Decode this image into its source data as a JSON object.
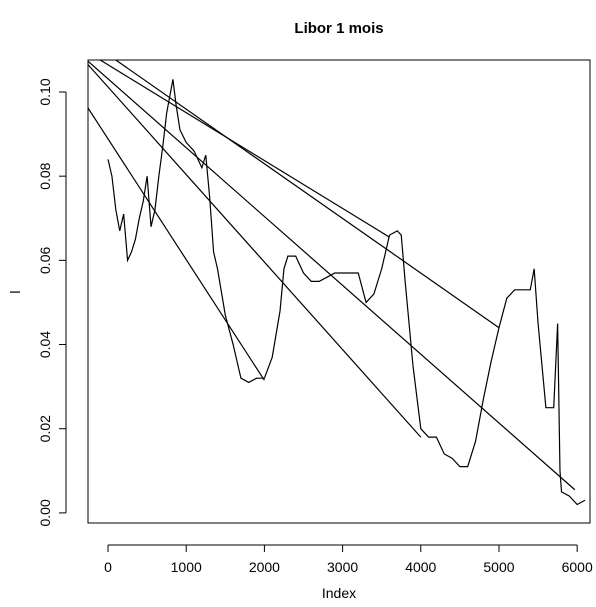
{
  "chart_data": {
    "type": "line",
    "title": "Libor 1 mois",
    "x_label": "Index",
    "y_label": "l",
    "xlim": [
      -256,
      6164
    ],
    "ylim": [
      -0.0024,
      0.1076
    ],
    "xticks": [
      0,
      1000,
      2000,
      3000,
      4000,
      5000,
      6000
    ],
    "yticks": [
      {
        "value": 0,
        "label": "0.00"
      },
      {
        "value": 0.02,
        "label": "0.02"
      },
      {
        "value": 0.04,
        "label": "0.04"
      },
      {
        "value": 0.06,
        "label": "0.06"
      },
      {
        "value": 0.08,
        "label": "0.08"
      },
      {
        "value": 0.1,
        "label": "0.10"
      }
    ],
    "series": [
      {
        "color": "#000000",
        "x": [
          0,
          50,
          100,
          150,
          200,
          250,
          300,
          350,
          400,
          450,
          500,
          550,
          600,
          650,
          700,
          750,
          800,
          830,
          870,
          920,
          1000,
          1100,
          1200,
          1250,
          1300,
          1350,
          1400,
          1500,
          1600,
          1700,
          1800,
          1900,
          2000,
          2100,
          2200,
          2250,
          2300,
          2400,
          2500,
          2600,
          2700,
          2800,
          2900,
          3000,
          3200,
          3300,
          3400,
          3500,
          3600,
          3700,
          3750,
          3800,
          3900,
          4000,
          4100,
          4200,
          4300,
          4400,
          4500,
          4600,
          4700,
          4800,
          4900,
          5000,
          5100,
          5200,
          5300,
          5400,
          5450,
          5500,
          5550,
          5600,
          5700,
          5750,
          5780,
          5800,
          5900,
          6000,
          6100
        ],
        "values": [
          0.084,
          0.08,
          0.072,
          0.067,
          0.071,
          0.06,
          0.062,
          0.065,
          0.07,
          0.074,
          0.08,
          0.068,
          0.072,
          0.08,
          0.087,
          0.095,
          0.1,
          0.103,
          0.097,
          0.091,
          0.088,
          0.086,
          0.082,
          0.085,
          0.075,
          0.062,
          0.058,
          0.047,
          0.04,
          0.032,
          0.031,
          0.032,
          0.032,
          0.037,
          0.048,
          0.058,
          0.061,
          0.061,
          0.057,
          0.055,
          0.055,
          0.056,
          0.057,
          0.057,
          0.057,
          0.05,
          0.052,
          0.058,
          0.066,
          0.067,
          0.066,
          0.055,
          0.035,
          0.02,
          0.018,
          0.018,
          0.014,
          0.013,
          0.011,
          0.011,
          0.017,
          0.027,
          0.036,
          0.044,
          0.051,
          0.053,
          0.053,
          0.053,
          0.058,
          0.045,
          0.035,
          0.025,
          0.025,
          0.045,
          0.01,
          0.005,
          0.004,
          0.002,
          0.003
        ]
      },
      {
        "color": "#000000",
        "x": [
          -256,
          2000
        ],
        "values": [
          0.0962,
          0.0315
        ]
      },
      {
        "color": "#000000",
        "x": [
          -256,
          4000
        ],
        "values": [
          0.1065,
          0.018
        ]
      },
      {
        "color": "#000000",
        "x": [
          -256,
          5970
        ],
        "values": [
          0.1073,
          0.0055
        ]
      },
      {
        "color": "#000000",
        "x": [
          -100,
          3600
        ],
        "values": [
          0.1076,
          0.0655
        ]
      },
      {
        "color": "#000000",
        "x": [
          100,
          5000
        ],
        "values": [
          0.1076,
          0.044
        ]
      }
    ]
  }
}
